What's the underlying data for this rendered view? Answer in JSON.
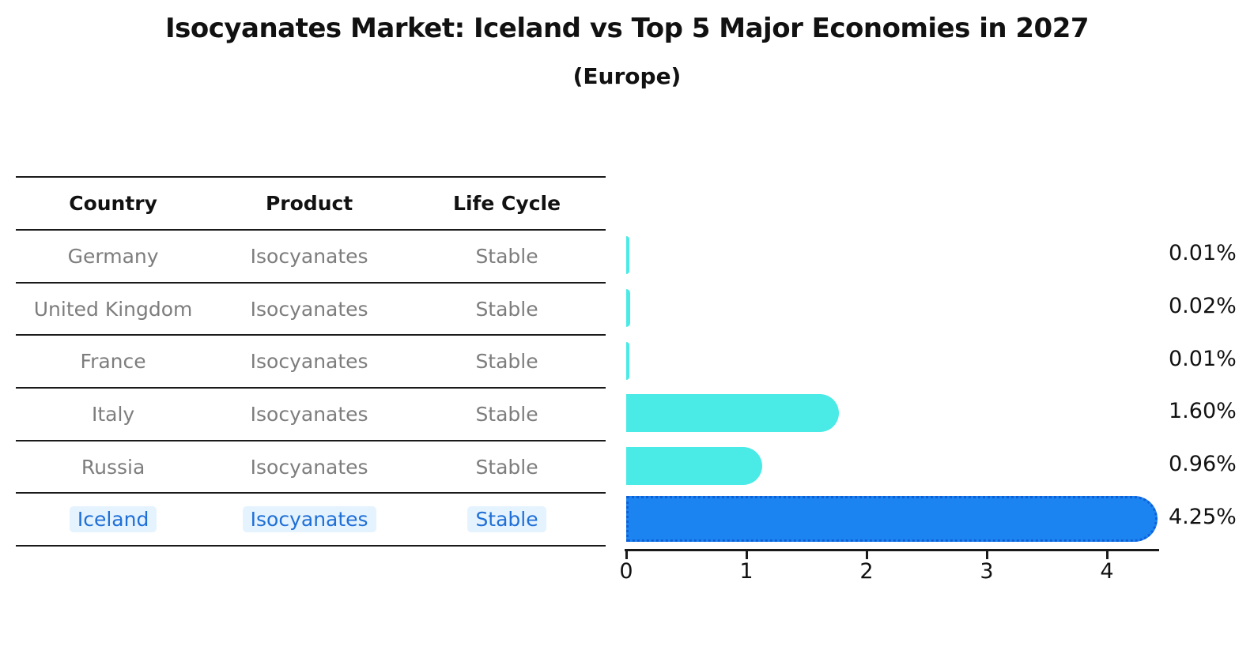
{
  "title": "Isocyanates Market: Iceland vs Top 5 Major Economies in 2027",
  "subtitle": "(Europe)",
  "table": {
    "columns": [
      "Country",
      "Product",
      "Life Cycle"
    ],
    "rows": [
      {
        "country": "Germany",
        "product": "Isocyanates",
        "life_cycle": "Stable",
        "highlight": false
      },
      {
        "country": "United Kingdom",
        "product": "Isocyanates",
        "life_cycle": "Stable",
        "highlight": false
      },
      {
        "country": "France",
        "product": "Isocyanates",
        "life_cycle": "Stable",
        "highlight": false
      },
      {
        "country": "Italy",
        "product": "Isocyanates",
        "life_cycle": "Stable",
        "highlight": false
      },
      {
        "country": "Russia",
        "product": "Isocyanates",
        "life_cycle": "Stable",
        "highlight": false
      },
      {
        "country": "Iceland",
        "product": "Isocyanates",
        "life_cycle": "Stable",
        "highlight": true
      }
    ]
  },
  "chart_data": {
    "type": "bar",
    "orientation": "horizontal",
    "title": "Isocyanates Market: Iceland vs Top 5 Major Economies in 2027",
    "subtitle": "(Europe)",
    "categories": [
      "Germany",
      "United Kingdom",
      "France",
      "Italy",
      "Russia",
      "Iceland"
    ],
    "values": [
      0.01,
      0.02,
      0.01,
      1.6,
      0.96,
      4.25
    ],
    "value_labels": [
      "0.01%",
      "0.02%",
      "0.01%",
      "1.60%",
      "0.96%",
      "4.25%"
    ],
    "xticks": [
      "0",
      "1",
      "2",
      "3",
      "4"
    ],
    "xlim": [
      0,
      4.45
    ],
    "grid": false,
    "legend": false,
    "highlight_index": 5,
    "colors": {
      "bar": "#4AEAE6",
      "highlight_bar": "#1B84F0",
      "highlight_border": "#0E5FD8",
      "highlight_text": "#1F6FD6",
      "table_text": "#7D7D7D",
      "axis_text": "#111111"
    }
  }
}
